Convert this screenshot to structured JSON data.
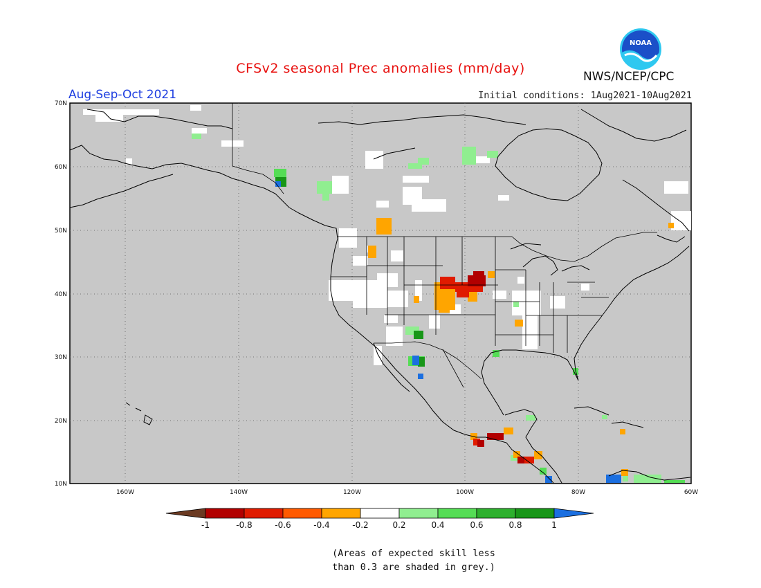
{
  "title": "CFSv2 seasonal Prec anomalies (mm/day)",
  "period": "Aug-Sep-Oct 2021",
  "agency": "NWS/NCEP/CPC",
  "initial_conditions": "Initial conditions: 1Aug2021-10Aug2021",
  "logo": {
    "text": "NOAA",
    "icon": "noaa-logo"
  },
  "map": {
    "background_color": "#c8c8c8",
    "lat_labels": [
      "70N",
      "60N",
      "50N",
      "40N",
      "30N",
      "20N",
      "10N"
    ],
    "lon_labels": [
      "160W",
      "140W",
      "120W",
      "100W",
      "80W",
      "60W"
    ],
    "gridlines": "dotted"
  },
  "colorbar": {
    "labels": [
      "-1",
      "-0.8",
      "-0.6",
      "-0.4",
      "-0.2",
      "0.2",
      "0.4",
      "0.6",
      "0.8",
      "1"
    ],
    "colors": [
      "#6b3a22",
      "#b20000",
      "#e01b00",
      "#ff5a00",
      "#ffa500",
      "#ffffff",
      "#90ee90",
      "#55dd55",
      "#2db02d",
      "#189618",
      "#1b6fe0"
    ]
  },
  "footnote": {
    "line1": "(Areas of expected skill less",
    "line2": "than 0.3 are shaded in grey.)"
  },
  "anomaly_cells": [
    {
      "cat": "white"
    },
    {
      "cat": "orange"
    },
    {
      "cat": "red"
    },
    {
      "cat": "darkred"
    },
    {
      "cat": "lightgreen"
    },
    {
      "cat": "green"
    },
    {
      "cat": "darkgreen"
    },
    {
      "cat": "blue"
    }
  ]
}
